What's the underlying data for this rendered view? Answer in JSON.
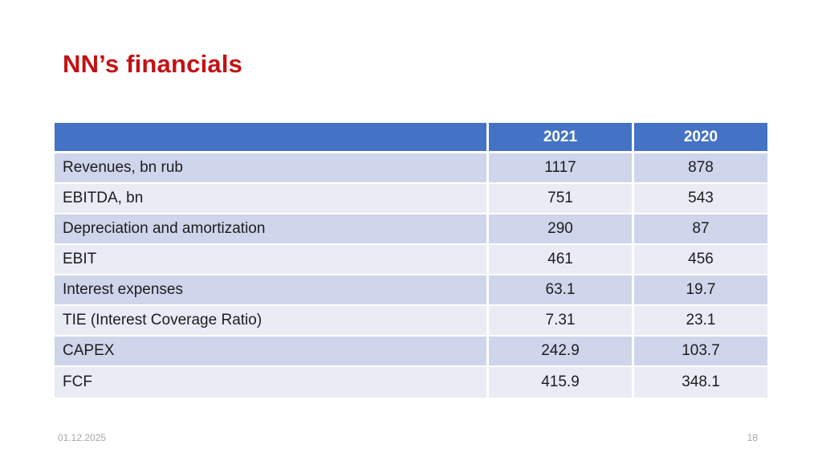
{
  "slide": {
    "title": "NN’s financials",
    "footer": {
      "date": "01.12.2025",
      "page_number": "18"
    }
  },
  "chart_data": {
    "type": "table",
    "title": "NN’s financials",
    "columns": [
      "",
      "2021",
      "2020"
    ],
    "rows": [
      {
        "label": "Revenues, bn rub",
        "y2021": "1117",
        "y2020": "878"
      },
      {
        "label": "EBITDA, bn",
        "y2021": "751",
        "y2020": "543"
      },
      {
        "label": "Depreciation and amortization",
        "y2021": "290",
        "y2020": "87"
      },
      {
        "label": "EBIT",
        "y2021": "461",
        "y2020": "456"
      },
      {
        "label": "Interest expenses",
        "y2021": "63.1",
        "y2020": "19.7"
      },
      {
        "label": "TIE (Interest Coverage Ratio)",
        "y2021": "7.31",
        "y2020": "23.1"
      },
      {
        "label": "CAPEX",
        "y2021": "242.9",
        "y2020": "103.7"
      },
      {
        "label": "FCF",
        "y2021": "415.9",
        "y2020": "348.1"
      }
    ],
    "layout": {
      "banded_rows": true,
      "header_style": "solid-blue",
      "value_alignment": "center",
      "label_alignment": "left"
    }
  },
  "colors": {
    "header_bg": "#4472C4",
    "row_band_dark": "#CFD5EA",
    "row_band_light": "#E9EBF5",
    "title_text": "#C11215",
    "header_text": "#FFFFFF",
    "cell_text": "#1D1D1F",
    "footer_text": "#A6A6A6"
  }
}
